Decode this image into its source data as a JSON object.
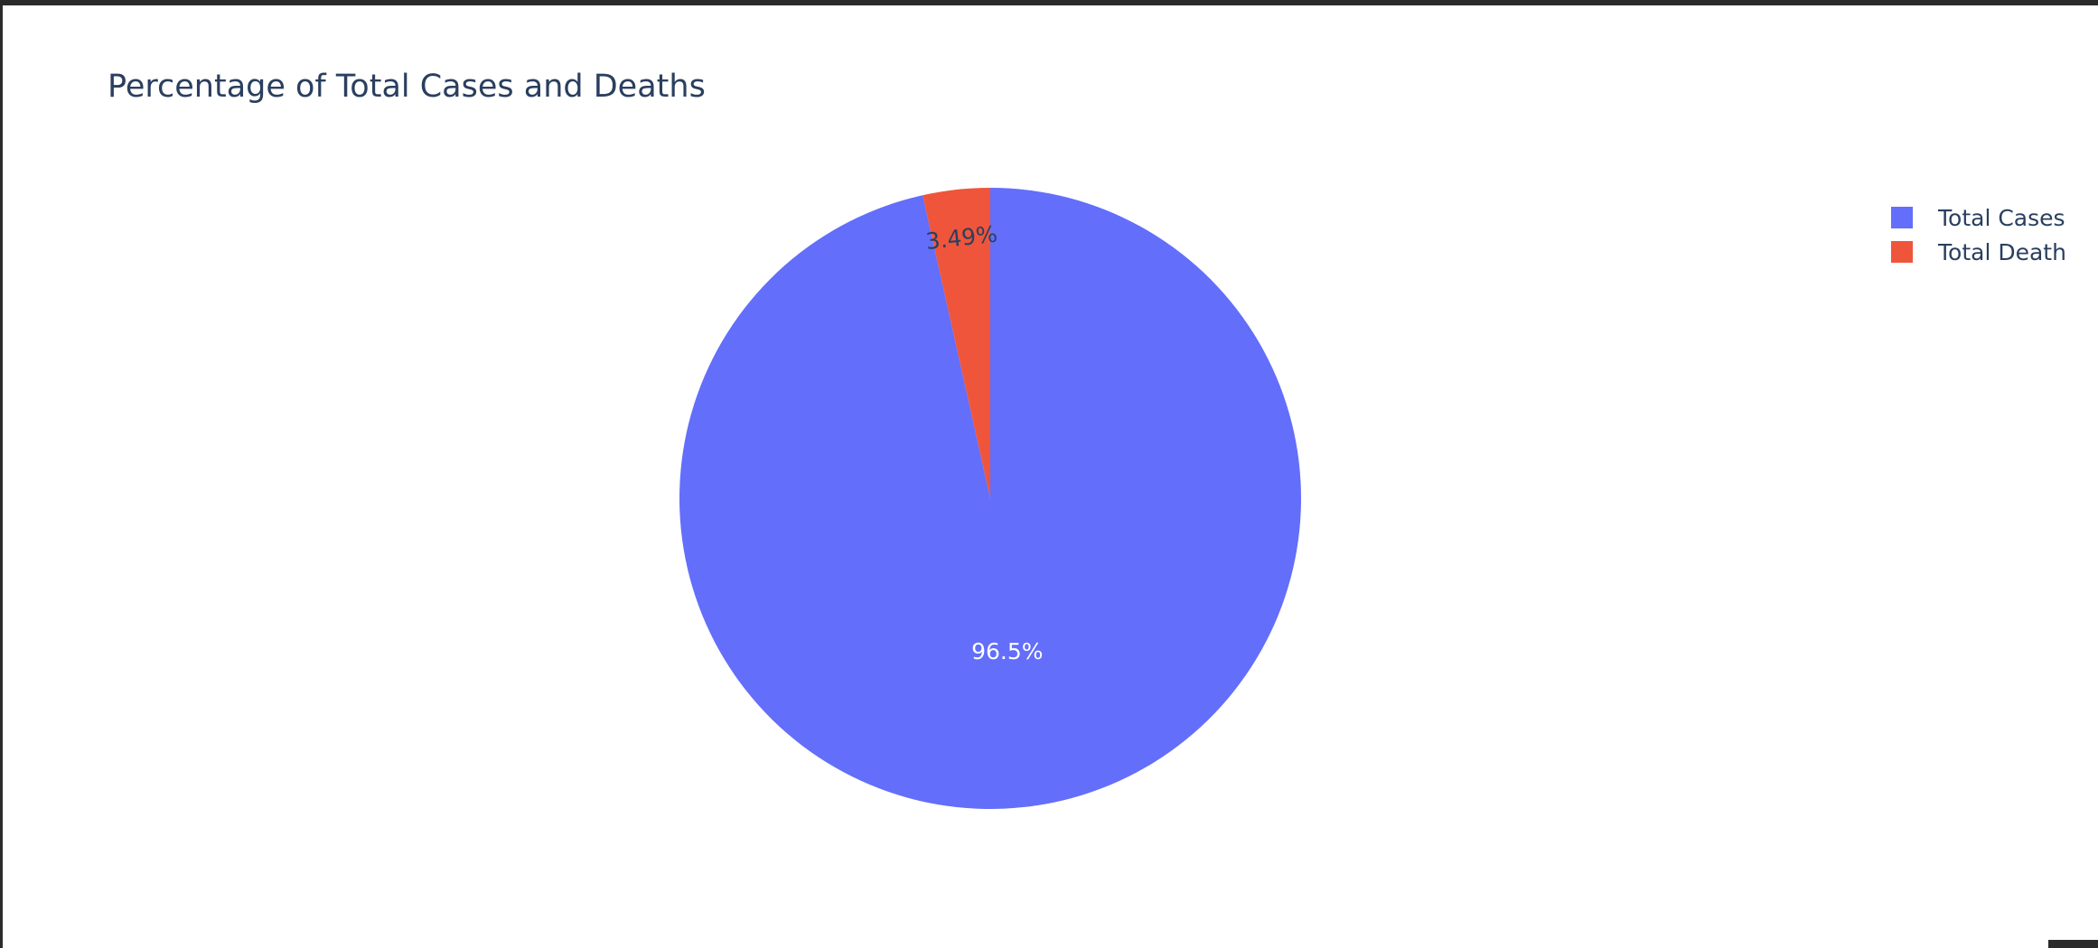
{
  "chart_data": {
    "type": "pie",
    "title": "Percentage of Total Cases and Deaths",
    "labels": [
      "Total Cases",
      "Total Death"
    ],
    "values": [
      96.51,
      3.49
    ],
    "slice_text": [
      "96.5%",
      "3.49%"
    ],
    "colors": [
      "#636efa",
      "#ef553b"
    ],
    "direction": "counterclockwise",
    "start_angle_deg": 90,
    "legend_placement": "top-right"
  }
}
